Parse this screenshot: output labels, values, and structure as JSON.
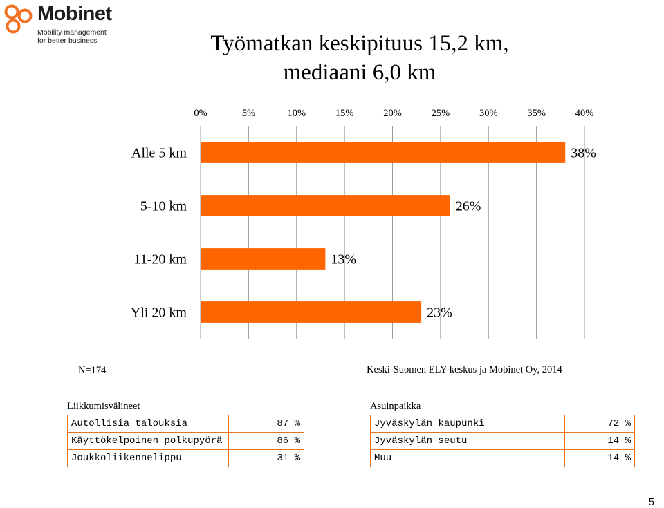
{
  "logo": {
    "name": "Mobinet",
    "tagline_line1": "Mobility management",
    "tagline_line2": "for better business",
    "color": "#f37021"
  },
  "title_line1": "Työmatkan keskipituus 15,2 km,",
  "title_line2": "mediaani 6,0 km",
  "chart_data": {
    "type": "bar",
    "orientation": "horizontal",
    "categories": [
      "Alle 5 km",
      "5-10 km",
      "11-20 km",
      "Yli 20 km"
    ],
    "values": [
      38,
      26,
      13,
      23
    ],
    "value_labels": [
      "38%",
      "26%",
      "13%",
      "23%"
    ],
    "xlim": [
      0,
      40
    ],
    "x_ticks": [
      "0%",
      "5%",
      "10%",
      "15%",
      "20%",
      "25%",
      "30%",
      "35%",
      "40%"
    ],
    "axis_position": "top",
    "grid": "vertical",
    "bar_color": "#ff6600",
    "grid_color": "#999999"
  },
  "n_note": "N=174",
  "source_note": "Keski-Suomen ELY-keskus ja Mobinet Oy, 2014",
  "left_table": {
    "caption": "Liikkumisvälineet",
    "rows": [
      {
        "label": "Autollisia talouksia",
        "value": "87 %"
      },
      {
        "label": "Käyttökelpoinen polkupyörä",
        "value": "86 %"
      },
      {
        "label": "Joukkoliikennelippu",
        "value": "31 %"
      }
    ]
  },
  "right_table": {
    "caption": "Asuinpaikka",
    "rows": [
      {
        "label": "Jyväskylän kaupunki",
        "value": "72 %"
      },
      {
        "label": "Jyväskylän seutu",
        "value": "14 %"
      },
      {
        "label": "Muu",
        "value": "14 %"
      }
    ]
  },
  "page_number": "5"
}
